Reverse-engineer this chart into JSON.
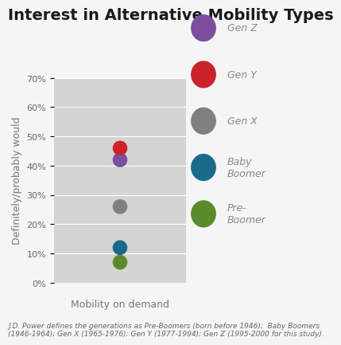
{
  "title": "Interest in Alternative Mobility Types",
  "xlabel": "Mobility on demand",
  "ylabel": "Definitely/probably would",
  "fig_bg_color": "#f5f5f5",
  "plot_bg_color": "#d4d4d4",
  "ylim": [
    0,
    0.7
  ],
  "yticks": [
    0.0,
    0.1,
    0.2,
    0.3,
    0.4,
    0.5,
    0.6,
    0.7
  ],
  "ytick_labels": [
    "0%",
    "10%",
    "20%",
    "30%",
    "40%",
    "50%",
    "60%",
    "70%"
  ],
  "series": [
    {
      "label": "Gen Z",
      "value": 0.42,
      "color": "#7B4EA0"
    },
    {
      "label": "Gen Y",
      "value": 0.46,
      "color": "#CC2229"
    },
    {
      "label": "Gen X",
      "value": 0.26,
      "color": "#808080"
    },
    {
      "label": "Baby\nBoomer",
      "value": 0.12,
      "color": "#1B6A8A"
    },
    {
      "label": "Pre-\nBoomer",
      "value": 0.07,
      "color": "#5A8A2A"
    }
  ],
  "footer_line1": "J.D. Power defines the generations as Pre-Boomers (born before 1946);  Baby Boomers",
  "footer_line2": "(1946-1964); Gen X (1965-1976); Gen Y (1977-1994); Gen Z (1995-2000 for this study).",
  "dot_size": 180,
  "title_fontsize": 14,
  "axis_label_fontsize": 9,
  "tick_fontsize": 8,
  "legend_fontsize": 9,
  "footer_fontsize": 6.5
}
